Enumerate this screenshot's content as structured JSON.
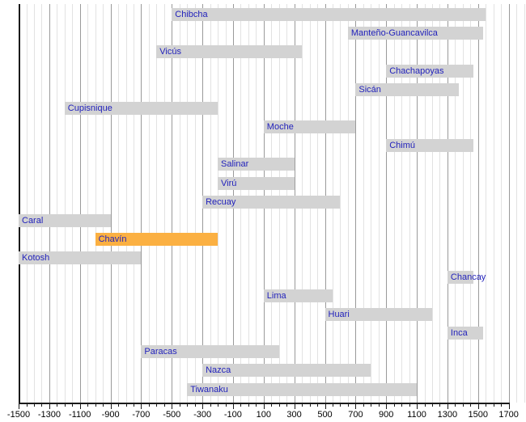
{
  "chart_data": {
    "type": "bar",
    "subtype": "horizontal-timeline-gantt",
    "title": "",
    "xlabel": "",
    "ylabel": "",
    "x_axis": {
      "min": -1500,
      "max": 1700,
      "major_tick_step": 200,
      "minor_grid_step": 50,
      "tick_labels": [
        "-1500",
        "-1300",
        "-1100",
        "-900",
        "-700",
        "-500",
        "-300",
        "-100",
        "100",
        "300",
        "500",
        "700",
        "900",
        "1100",
        "1300",
        "1500",
        "1700"
      ]
    },
    "grid": "vertical-only",
    "legend": "none",
    "series": [
      {
        "label": "Chibcha",
        "start": -500,
        "end": 1550,
        "highlight": false,
        "clipped_left": false
      },
      {
        "label": "Manteño-Guancavilca",
        "start": 650,
        "end": 1534,
        "highlight": false,
        "clipped_left": false
      },
      {
        "label": "Vicús",
        "start": -600,
        "end": 350,
        "highlight": false,
        "clipped_left": false
      },
      {
        "label": "Chachapoyas",
        "start": 900,
        "end": 1470,
        "highlight": false,
        "clipped_left": false
      },
      {
        "label": "Sicán",
        "start": 700,
        "end": 1375,
        "highlight": false,
        "clipped_left": false
      },
      {
        "label": "Cupisnique",
        "start": -1200,
        "end": -200,
        "highlight": false,
        "clipped_left": false
      },
      {
        "label": "Moche",
        "start": 100,
        "end": 700,
        "highlight": false,
        "clipped_left": false
      },
      {
        "label": "Chimú",
        "start": 900,
        "end": 1470,
        "highlight": false,
        "clipped_left": false
      },
      {
        "label": "Salinar",
        "start": -200,
        "end": 300,
        "highlight": false,
        "clipped_left": false
      },
      {
        "label": "Virú",
        "start": -200,
        "end": 300,
        "highlight": false,
        "clipped_left": false
      },
      {
        "label": "Recuay",
        "start": -300,
        "end": 600,
        "highlight": false,
        "clipped_left": false
      },
      {
        "label": "Caral",
        "start": -1500,
        "end": -900,
        "highlight": false,
        "clipped_left": true
      },
      {
        "label": "Chavín",
        "start": -1000,
        "end": -200,
        "highlight": true,
        "clipped_left": false
      },
      {
        "label": "Kotosh",
        "start": -1500,
        "end": -700,
        "highlight": false,
        "clipped_left": true
      },
      {
        "label": "Chancay",
        "start": 1300,
        "end": 1470,
        "highlight": false,
        "clipped_left": false
      },
      {
        "label": "Lima",
        "start": 100,
        "end": 550,
        "highlight": false,
        "clipped_left": false
      },
      {
        "label": "Huari",
        "start": 500,
        "end": 1200,
        "highlight": false,
        "clipped_left": false
      },
      {
        "label": "Inca",
        "start": 1300,
        "end": 1533,
        "highlight": false,
        "clipped_left": false
      },
      {
        "label": "Paracas",
        "start": -700,
        "end": 200,
        "highlight": false,
        "clipped_left": false
      },
      {
        "label": "Nazca",
        "start": -300,
        "end": 800,
        "highlight": false,
        "clipped_left": false
      },
      {
        "label": "Tiwanaku",
        "start": -400,
        "end": 1100,
        "highlight": false,
        "clipped_left": false
      }
    ],
    "highlighted_label": "Chavín",
    "colors": {
      "bar_fill": "#d3d3d3",
      "highlight_fill": "#FBB042",
      "label_text": "#2222BB",
      "axis": "#1a1a1a",
      "major_grid": "#9a9a9a",
      "minor_grid": "#e2e2e2",
      "tick_label": "#000000",
      "background": "#ffffff"
    }
  }
}
